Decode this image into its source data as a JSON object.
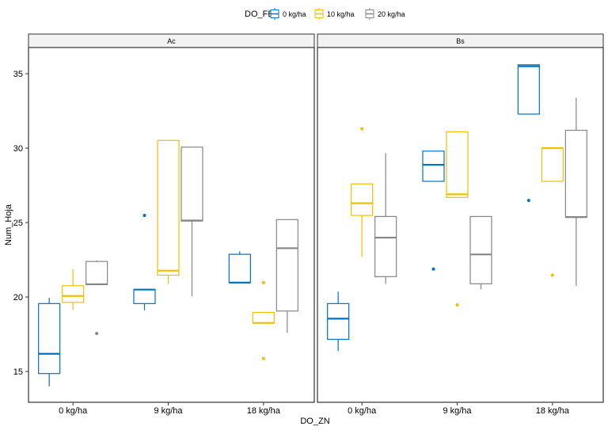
{
  "chart_data": {
    "type": "boxplot",
    "xlabel": "DO_ZN",
    "ylabel": "Num_Hoja",
    "ylim": [
      12.93,
      36.76
    ],
    "yticks": [
      15,
      20,
      25,
      30,
      35
    ],
    "grid": false,
    "legend": {
      "title": "DO_FE",
      "position": "top",
      "entries": [
        "0 kg/ha",
        "10 kg/ha",
        "20 kg/ha"
      ]
    },
    "colors": [
      "#0073C2",
      "#EFC000",
      "#868686"
    ],
    "categories": [
      "0 kg/ha",
      "9 kg/ha",
      "18 kg/ha"
    ],
    "facets": [
      {
        "label": "Ac",
        "groups": [
          [
            {
              "low": 14.0,
              "q1": 14.86,
              "median": 16.19,
              "q3": 19.56,
              "high": 19.95,
              "outliers": []
            },
            {
              "low": 19.15,
              "q1": 19.64,
              "median": 20.07,
              "q3": 20.76,
              "high": 21.86,
              "outliers": []
            },
            {
              "low": 20.8,
              "q1": 20.83,
              "median": 20.86,
              "q3": 22.39,
              "high": 22.45,
              "outliers": [
                17.55
              ]
            }
          ],
          [
            {
              "low": 19.11,
              "q1": 19.56,
              "median": 20.5,
              "q3": 20.5,
              "high": 20.5,
              "outliers": [
                25.48
              ]
            },
            {
              "low": 20.89,
              "q1": 21.47,
              "median": 21.77,
              "q3": 30.52,
              "high": 30.52,
              "outliers": []
            },
            {
              "low": 20.05,
              "q1": 25.1,
              "median": 25.14,
              "q3": 30.07,
              "high": 30.07,
              "outliers": []
            }
          ],
          [
            {
              "low": 20.95,
              "q1": 20.97,
              "median": 20.97,
              "q3": 22.87,
              "high": 23.07,
              "outliers": []
            },
            {
              "low": 18.26,
              "q1": 18.26,
              "median": 18.26,
              "q3": 18.97,
              "high": 18.97,
              "outliers": [
                20.97,
                15.87
              ]
            },
            {
              "low": 17.6,
              "q1": 19.06,
              "median": 23.28,
              "q3": 25.2,
              "high": 25.2,
              "outliers": []
            }
          ]
        ]
      },
      {
        "label": "Bs",
        "groups": [
          [
            {
              "low": 16.37,
              "q1": 17.16,
              "median": 18.55,
              "q3": 19.56,
              "high": 20.36,
              "outliers": []
            },
            {
              "low": 22.7,
              "q1": 25.48,
              "median": 26.3,
              "q3": 27.6,
              "high": 27.6,
              "outliers": [
                31.3
              ]
            },
            {
              "low": 20.89,
              "q1": 21.37,
              "median": 23.99,
              "q3": 25.41,
              "high": 29.66,
              "outliers": []
            }
          ],
          [
            {
              "low": 27.77,
              "q1": 27.77,
              "median": 28.88,
              "q3": 29.8,
              "high": 29.8,
              "outliers": [
                21.88
              ]
            },
            {
              "low": 26.69,
              "q1": 26.69,
              "median": 26.9,
              "q3": 31.1,
              "high": 31.1,
              "outliers": [
                19.47
              ]
            },
            {
              "low": 20.52,
              "q1": 20.89,
              "median": 22.86,
              "q3": 25.41,
              "high": 25.41,
              "outliers": []
            }
          ],
          [
            {
              "low": 32.29,
              "q1": 32.29,
              "median": 35.5,
              "q3": 35.6,
              "high": 35.6,
              "outliers": [
                26.49
              ]
            },
            {
              "low": 27.77,
              "q1": 27.77,
              "median": 30.0,
              "q3": 30.0,
              "high": 30.04,
              "outliers": [
                21.47
              ]
            },
            {
              "low": 20.76,
              "q1": 25.37,
              "median": 25.37,
              "q3": 31.2,
              "high": 33.39,
              "outliers": []
            }
          ]
        ]
      }
    ]
  }
}
